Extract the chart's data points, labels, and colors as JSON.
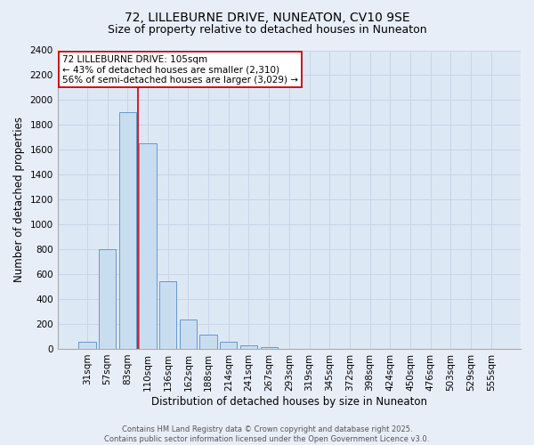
{
  "title_line1": "72, LILLEBURNE DRIVE, NUNEATON, CV10 9SE",
  "title_line2": "Size of property relative to detached houses in Nuneaton",
  "xlabel": "Distribution of detached houses by size in Nuneaton",
  "ylabel": "Number of detached properties",
  "categories": [
    "31sqm",
    "57sqm",
    "83sqm",
    "110sqm",
    "136sqm",
    "162sqm",
    "188sqm",
    "214sqm",
    "241sqm",
    "267sqm",
    "293sqm",
    "319sqm",
    "345sqm",
    "372sqm",
    "398sqm",
    "424sqm",
    "450sqm",
    "476sqm",
    "503sqm",
    "529sqm",
    "555sqm"
  ],
  "values": [
    55,
    800,
    1900,
    1650,
    540,
    235,
    115,
    60,
    30,
    15,
    0,
    0,
    0,
    0,
    0,
    0,
    0,
    0,
    0,
    0,
    0
  ],
  "bar_color": "#c9ddf0",
  "bar_edge_color": "#6699cc",
  "vline_color": "#cc0000",
  "annotation_text": "72 LILLEBURNE DRIVE: 105sqm\n← 43% of detached houses are smaller (2,310)\n56% of semi-detached houses are larger (3,029) →",
  "annotation_box_color": "#cc0000",
  "ylim": [
    0,
    2400
  ],
  "yticks": [
    0,
    200,
    400,
    600,
    800,
    1000,
    1200,
    1400,
    1600,
    1800,
    2000,
    2200,
    2400
  ],
  "grid_color": "#c8d4e8",
  "background_color": "#dde8f5",
  "fig_background_color": "#e8eef8",
  "footer_text": "Contains HM Land Registry data © Crown copyright and database right 2025.\nContains public sector information licensed under the Open Government Licence v3.0.",
  "title_fontsize": 10,
  "subtitle_fontsize": 9,
  "axis_label_fontsize": 8.5,
  "tick_fontsize": 7.5,
  "annotation_fontsize": 7.5,
  "footer_fontsize": 6
}
